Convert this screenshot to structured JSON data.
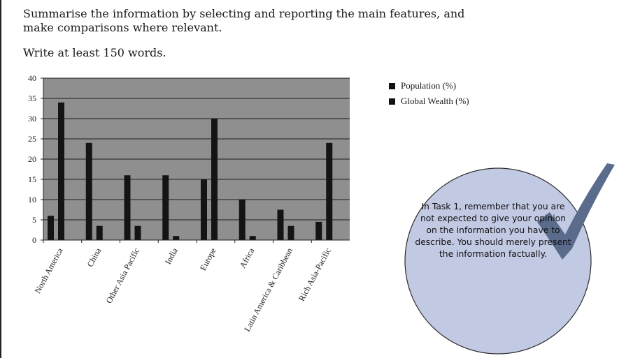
{
  "instructions": {
    "task": "Summarise the information by selecting and reporting the main features, and make comparisons where relevant.",
    "word_count": "Write at least 150 words."
  },
  "callout": {
    "text": "In Task 1, remember that you are not expected to give your opinion on the information you have to describe. You should merely present the information factually.",
    "icon": "checkmark-icon",
    "fill_color": "#c2c9e3",
    "check_color": "#5a6b8c"
  },
  "colors": {
    "plot_bg": "#8f8f8f",
    "bar": "#141414"
  },
  "chart_data": {
    "type": "bar",
    "categories": [
      "North America",
      "China",
      "Other Asia Pacific",
      "India",
      "Europe",
      "Africa",
      "Latin America & Caribbean",
      "Rich Asia-Pacific"
    ],
    "series": [
      {
        "name": "Population (%)",
        "values": [
          6,
          24,
          16,
          16,
          15,
          10,
          7.5,
          4.5
        ]
      },
      {
        "name": "Global Wealth (%)",
        "values": [
          34,
          3.5,
          3.5,
          1,
          30,
          1,
          3.5,
          24
        ]
      }
    ],
    "ylim": [
      0,
      40
    ],
    "yticks": [
      0,
      5,
      10,
      15,
      20,
      25,
      30,
      35,
      40
    ],
    "title": "",
    "xlabel": "",
    "ylabel": "",
    "grid": true,
    "legend": "top-right"
  }
}
